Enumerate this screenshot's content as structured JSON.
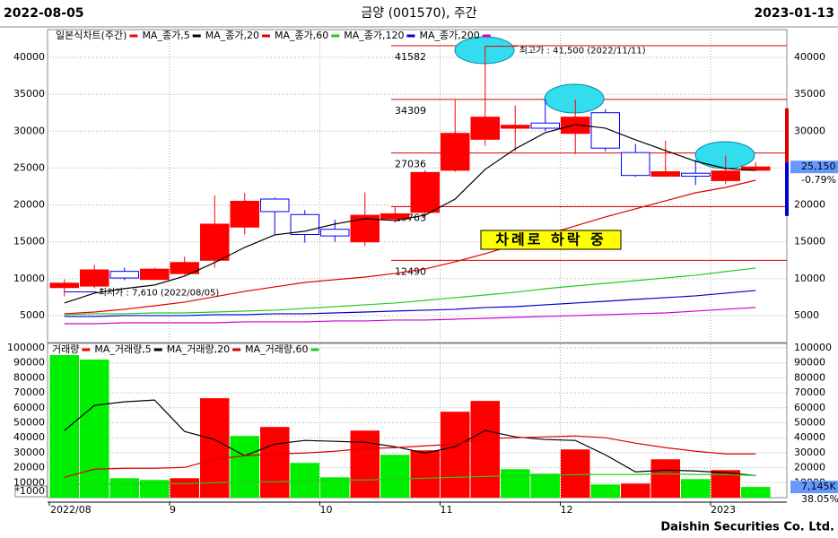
{
  "header": {
    "start": "2022-08-05",
    "title": "금양 (001570), 주간",
    "end": "2023-01-13"
  },
  "footer": "Daishin Securities Co. Ltd.",
  "chart_data": [
    {
      "type": "candlestick",
      "categories": [
        "2022/08",
        null,
        null,
        null,
        "9",
        null,
        null,
        null,
        null,
        "10",
        null,
        null,
        null,
        "11",
        null,
        null,
        null,
        "12",
        null,
        null,
        null,
        null,
        "2023",
        null
      ],
      "candles": {
        "name": "일본식차트(주간)",
        "up_color": "#ff0000",
        "down_color": "#0000ff",
        "open": [
          8800,
          9000,
          11000,
          9900,
          10700,
          12500,
          17000,
          20800,
          18700,
          16700,
          15000,
          18100,
          19000,
          24700,
          28900,
          30400,
          31100,
          29700,
          32500,
          27100,
          23900,
          24300,
          23300,
          24700
        ],
        "high": [
          9900,
          11900,
          11500,
          11500,
          13000,
          21300,
          21600,
          21000,
          19300,
          18000,
          21700,
          19700,
          24700,
          34200,
          41500,
          33500,
          34300,
          34300,
          33000,
          28300,
          28700,
          26100,
          26700,
          25800
        ],
        "low": [
          7610,
          8700,
          9800,
          9800,
          10500,
          11500,
          16000,
          15900,
          14900,
          15000,
          14400,
          17600,
          18100,
          24500,
          28000,
          27300,
          30000,
          26900,
          27300,
          23800,
          23800,
          22700,
          22800,
          24600
        ],
        "close": [
          9400,
          11200,
          10100,
          11300,
          12200,
          17400,
          20500,
          19100,
          16000,
          15800,
          18600,
          18800,
          24400,
          29700,
          31900,
          30800,
          30400,
          31900,
          27700,
          24000,
          24500,
          23900,
          24600,
          25150
        ]
      },
      "series": [
        {
          "name": "MA_종가,5",
          "color": "#000000",
          "values": [
            6710,
            8050,
            8660,
            9150,
            10360,
            12190,
            14250,
            15950,
            16440,
            17410,
            18140,
            17890,
            18620,
            20800,
            24820,
            27610,
            29800,
            30890,
            30410,
            28830,
            27370,
            25920,
            24950,
            24700
          ]
        },
        {
          "name": "MA_종가,20",
          "color": "#dd0000",
          "values": [
            5250,
            5490,
            5860,
            6340,
            6830,
            7560,
            8290,
            8900,
            9500,
            9870,
            10230,
            10720,
            11330,
            12300,
            13390,
            14610,
            15940,
            17160,
            18380,
            19470,
            20560,
            21650,
            22380,
            23350
          ]
        },
        {
          "name": "MA_종가,60",
          "color": "#22cc22",
          "values": [
            5130,
            5250,
            5250,
            5370,
            5370,
            5490,
            5620,
            5740,
            5980,
            6220,
            6470,
            6710,
            7070,
            7440,
            7800,
            8170,
            8650,
            9030,
            9380,
            9740,
            10110,
            10480,
            10970,
            11450
          ]
        },
        {
          "name": "MA_종가,120",
          "color": "#0000cc",
          "values": [
            4890,
            4890,
            5010,
            5010,
            5010,
            5130,
            5130,
            5250,
            5250,
            5370,
            5490,
            5620,
            5740,
            5860,
            6100,
            6220,
            6470,
            6710,
            6950,
            7200,
            7440,
            7680,
            8050,
            8410
          ]
        },
        {
          "name": "MA_종가,200",
          "color": "#cc00cc",
          "values": [
            3910,
            3910,
            4030,
            4030,
            4030,
            4030,
            4160,
            4160,
            4160,
            4280,
            4280,
            4400,
            4400,
            4520,
            4640,
            4770,
            4890,
            5010,
            5130,
            5250,
            5370,
            5620,
            5860,
            6100
          ]
        }
      ],
      "levels": [
        41582,
        34309,
        27036,
        19763,
        12490
      ],
      "level_color": "#dd0000",
      "ylim": [
        1356,
        43524
      ],
      "yticks": [
        5000,
        10000,
        15000,
        20000,
        25000,
        30000,
        35000,
        40000
      ],
      "grid": true,
      "high_note": "최고가 : 41,500 (2022/11/11)",
      "low_note": "최저가 : 7,610 (2022/08/05)",
      "callout": "차례로 하락 중",
      "last_label": "25,150",
      "change_label": "-0.79%"
    },
    {
      "type": "bar",
      "name": "거래량",
      "values": [
        95200,
        92200,
        13000,
        11800,
        13000,
        66400,
        41200,
        47200,
        23200,
        13600,
        44800,
        28600,
        31600,
        57400,
        64600,
        19000,
        16000,
        32200,
        8800,
        9400,
        25600,
        12400,
        18400,
        7145
      ],
      "colors": [
        "#00ee00",
        "#00ee00",
        "#00ee00",
        "#00ee00",
        "#ff0000",
        "#ff0000",
        "#00ee00",
        "#ff0000",
        "#00ee00",
        "#00ee00",
        "#ff0000",
        "#00ee00",
        "#ff0000",
        "#ff0000",
        "#ff0000",
        "#00ee00",
        "#00ee00",
        "#ff0000",
        "#00ee00",
        "#ff0000",
        "#ff0000",
        "#00ee00",
        "#ff0000",
        "#00ee00"
      ],
      "legend_color": "#ff0000",
      "series": [
        {
          "name": "MA_거래량,5",
          "color": "#000000",
          "values": [
            44800,
            61600,
            64000,
            65200,
            44200,
            38800,
            28000,
            35800,
            38200,
            37600,
            37000,
            34000,
            29800,
            34000,
            44800,
            40600,
            38800,
            38200,
            28600,
            17200,
            18400,
            17800,
            16600,
            14800
          ]
        },
        {
          "name": "MA_거래량,20",
          "color": "#dd0000",
          "values": [
            13600,
            19000,
            19600,
            19600,
            20200,
            25600,
            28000,
            29200,
            29800,
            31000,
            32800,
            33400,
            34600,
            35800,
            39400,
            40000,
            40600,
            41200,
            40000,
            36400,
            33400,
            31000,
            29200,
            29200
          ]
        },
        {
          "name": "MA_거래량,60",
          "color": "#22cc22",
          "values": [
            8800,
            8800,
            8800,
            9400,
            9400,
            10000,
            10600,
            10600,
            11200,
            11800,
            11800,
            12400,
            13000,
            13600,
            14200,
            14800,
            14800,
            15400,
            15400,
            15400,
            16000,
            15400,
            15400,
            14800
          ]
        }
      ],
      "ylim": [
        0,
        103000
      ],
      "yticks": [
        10000,
        20000,
        30000,
        40000,
        50000,
        60000,
        70000,
        80000,
        90000,
        100000
      ],
      "grid": true,
      "unit_label": "*1000",
      "last_label": "7,145K",
      "change_label": "38.05%"
    }
  ]
}
